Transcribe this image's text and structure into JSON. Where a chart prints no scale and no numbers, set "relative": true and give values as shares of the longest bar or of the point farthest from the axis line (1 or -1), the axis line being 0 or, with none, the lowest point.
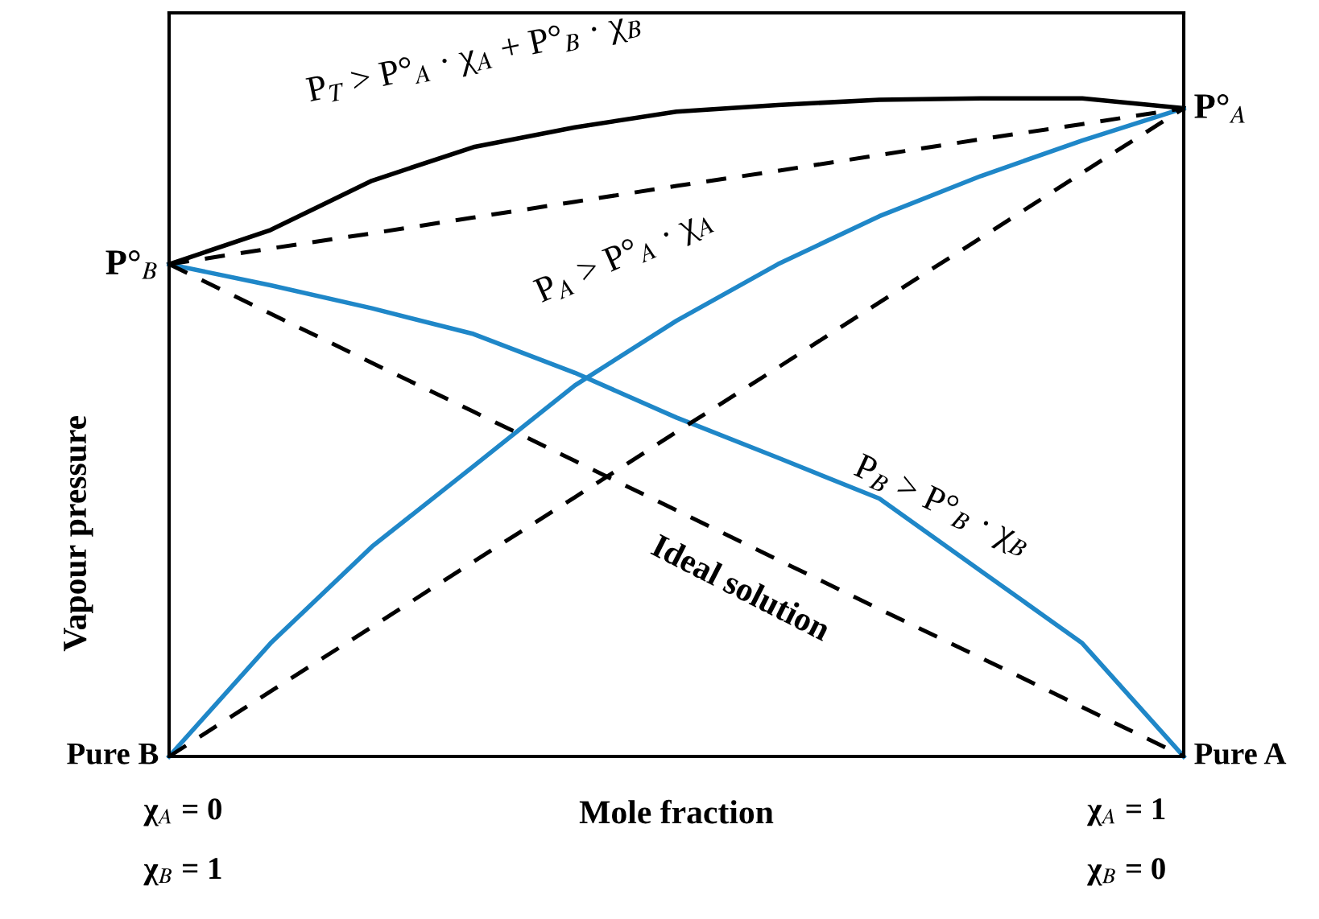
{
  "chart_data": {
    "type": "line",
    "relative": true,
    "xlabel": "Mole fraction",
    "ylabel": "Vapour pressure",
    "categories": [
      null,
      null,
      null,
      null,
      null,
      null,
      null,
      null,
      null,
      null,
      null
    ],
    "marker": "none",
    "series": [
      {
        "color": "#000000",
        "line_style": "solid",
        "values": [
          0.748,
          0.8,
          0.875,
          0.926,
          0.956,
          0.98,
          0.99,
          0.998,
          1,
          1,
          0.985
        ]
      },
      {
        "color": "#1f87c8",
        "line_style": "solid",
        "values": [
          0,
          0.172,
          0.319,
          0.441,
          0.564,
          0.662,
          0.748,
          0.821,
          0.882,
          0.936,
          0.985
        ]
      },
      {
        "color": "#1f87c8",
        "line_style": "solid",
        "values": [
          0.748,
          0.716,
          0.681,
          0.642,
          0.583,
          0.515,
          0.454,
          0.392,
          0.282,
          0.172,
          0
        ]
      },
      {
        "color": "#000000",
        "line_style": "dashed",
        "values": [
          0.748,
          0.772,
          0.795,
          0.819,
          0.843,
          0.867,
          0.89,
          0.914,
          0.938,
          0.961,
          0.985
        ]
      },
      {
        "color": "#000000",
        "line_style": "dashed",
        "values": [
          0,
          0.099,
          0.197,
          0.296,
          0.394,
          0.493,
          0.591,
          0.69,
          0.788,
          0.887,
          0.985
        ]
      },
      {
        "color": "#000000",
        "line_style": "dashed",
        "values": [
          0.748,
          0.673,
          0.598,
          0.524,
          0.449,
          0.374,
          0.299,
          0.224,
          0.15,
          0.075,
          0
        ]
      }
    ],
    "annotations": [
      "P°$_{B}$",
      "P°$_{A}$",
      "Pure B",
      "Pure A",
      "χ$_{A}$ = 0",
      "χ$_{B}$ = 1",
      "χ$_{A}$ = 1",
      "χ$_{B}$ = 0",
      "P$_{T}$ > P°$_{A}$ · χ$_{A}$ + P°$_{B}$ · χ$_{B}$",
      "P$_{A}$ > P°$_{A}$ · χ$_{A}$",
      "P$_{B}$ > P°$_{B}$ · χ$_{B}$",
      "Ideal solution"
    ]
  }
}
